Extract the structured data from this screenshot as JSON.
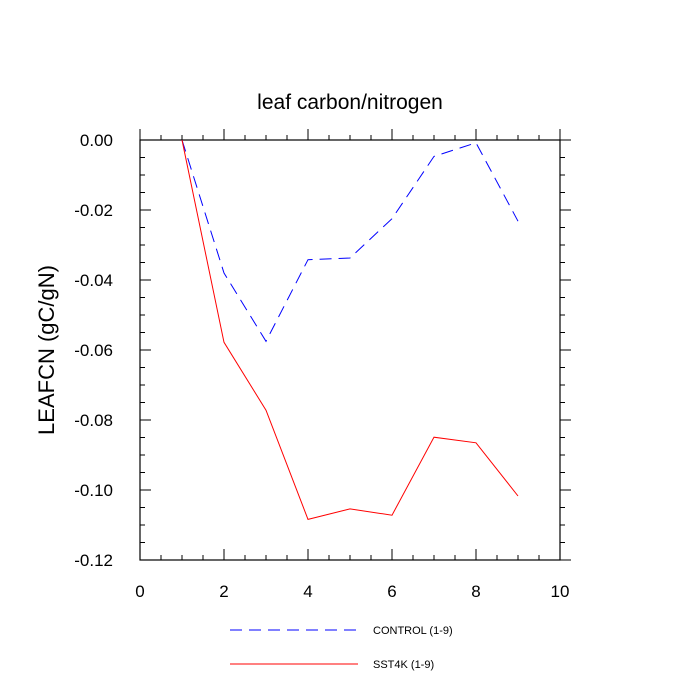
{
  "chart_data": {
    "type": "line",
    "title": "leaf carbon/nitrogen",
    "xlabel": "",
    "ylabel": "LEAFCN  (gC/gN)",
    "xlim": [
      0,
      10
    ],
    "ylim": [
      -0.12,
      0.0
    ],
    "x_ticks": [
      0,
      2,
      4,
      6,
      8,
      10
    ],
    "x_tick_labels": [
      "0",
      "2",
      "4",
      "6",
      "8",
      "10"
    ],
    "y_ticks": [
      0.0,
      -0.02,
      -0.04,
      -0.06,
      -0.08,
      -0.1,
      -0.12
    ],
    "y_tick_labels": [
      "0.00",
      "-0.02",
      "-0.04",
      "-0.06",
      "-0.08",
      "-0.10",
      "-0.12"
    ],
    "legend_position": "bottom",
    "series": [
      {
        "name": "CONTROL (1-9)",
        "color": "#0000ff",
        "dash": "dashed",
        "x": [
          1,
          2,
          3,
          4,
          5,
          6,
          7,
          8,
          9
        ],
        "values": [
          0.0,
          -0.038,
          -0.0575,
          -0.0342,
          -0.0337,
          -0.0225,
          -0.0047,
          -0.0008,
          -0.0232
        ]
      },
      {
        "name": "SST4K (1-9)",
        "color": "#ff0000",
        "dash": "solid",
        "x": [
          1,
          2,
          3,
          4,
          5,
          6,
          7,
          8,
          9
        ],
        "values": [
          0.0,
          -0.0578,
          -0.0772,
          -0.1084,
          -0.1054,
          -0.1072,
          -0.0849,
          -0.0865,
          -0.1017
        ]
      }
    ]
  }
}
